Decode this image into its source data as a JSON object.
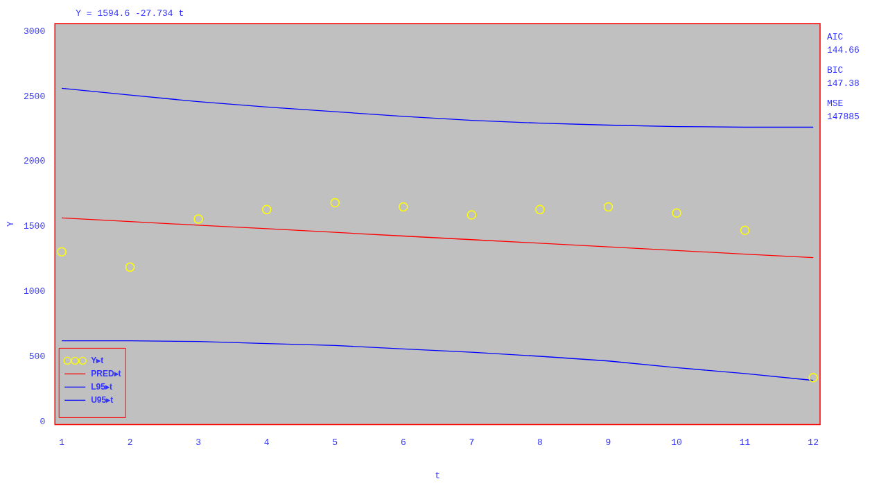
{
  "chart_data": {
    "type": "line",
    "title": "Y = 1594.6 -27.734 t",
    "xlabel": "t",
    "ylabel": "Y",
    "annotations": [
      "AIC",
      "144.66",
      "BIC",
      "147.38",
      "MSE",
      "147885"
    ],
    "x": [
      1,
      2,
      3,
      4,
      5,
      6,
      7,
      8,
      9,
      10,
      11,
      12
    ],
    "xlim": [
      0.9,
      12.1
    ],
    "xticks": [
      1,
      2,
      3,
      4,
      5,
      6,
      7,
      8,
      9,
      10,
      11,
      12
    ],
    "ylim": [
      -20,
      3060
    ],
    "yticks": [
      0,
      500,
      1000,
      1500,
      2000,
      2500,
      3000
    ],
    "grid": false,
    "legend": "bottom left",
    "series": [
      {
        "name": "Y▸t",
        "type": "scatter",
        "marker": "circle",
        "color": "#ffff00",
        "values": [
          1307,
          1189,
          1559,
          1631,
          1683,
          1652,
          1590,
          1631,
          1652,
          1605,
          1472,
          340
        ]
      },
      {
        "name": "PRED▸t",
        "type": "line",
        "marker": "none",
        "color": "#ff0000",
        "values": [
          1567,
          1539,
          1511,
          1484,
          1456,
          1428,
          1400,
          1373,
          1345,
          1317,
          1289,
          1262
        ]
      },
      {
        "name": "L95▸t",
        "type": "line",
        "marker": "none",
        "color": "#0000ff",
        "values": [
          623,
          623,
          618,
          602,
          587,
          561,
          535,
          504,
          468,
          417,
          371,
          319
        ]
      },
      {
        "name": "U95▸t",
        "type": "line",
        "marker": "none",
        "color": "#0000ff",
        "values": [
          2563,
          2511,
          2460,
          2419,
          2383,
          2347,
          2316,
          2295,
          2280,
          2269,
          2264,
          2264
        ]
      }
    ]
  }
}
